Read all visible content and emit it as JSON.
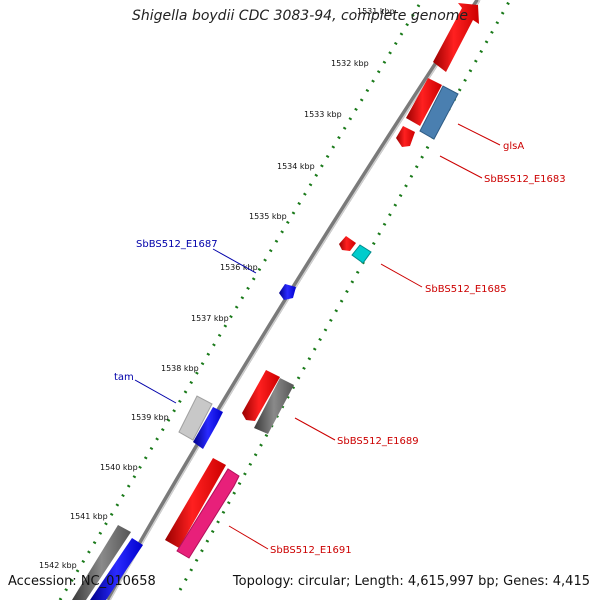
{
  "title": "Shigella boydii CDC 3083-94, complete genome",
  "footer": {
    "accession": "Accession: NC_010658",
    "topology": "Topology: circular; Length: 4,615,997 bp; Genes: 4,415"
  },
  "ticks": [
    "1531 kbp",
    "1532 kbp",
    "1533 kbp",
    "1534 kbp",
    "1535 kbp",
    "1536 kbp",
    "1537 kbp",
    "1538 kbp",
    "1539 kbp",
    "1540 kbp",
    "1541 kbp",
    "1542 kbp"
  ],
  "gene_labels": [
    {
      "text": "glsA",
      "color": "#cc0000"
    },
    {
      "text": "SbBS512_E1683",
      "color": "#cc0000"
    },
    {
      "text": "SbBS512_E1685",
      "color": "#cc0000"
    },
    {
      "text": "SbBS512_E1689",
      "color": "#cc0000"
    },
    {
      "text": "SbBS512_E1691",
      "color": "#cc0000"
    },
    {
      "text": "SbBS512_E1687",
      "color": "#0000aa"
    },
    {
      "text": "tam",
      "color": "#0000aa"
    }
  ],
  "colors": {
    "backbone": "#808080",
    "gc_ticks": "#1a7a1a",
    "cds_red": "#ee0000",
    "blue": "#0000ee",
    "gray": "#6b6b6b",
    "steel": "#4a7fb0",
    "cyan": "#00cccc",
    "pink": "#e8207a",
    "light_gray": "#c8c8c8"
  }
}
